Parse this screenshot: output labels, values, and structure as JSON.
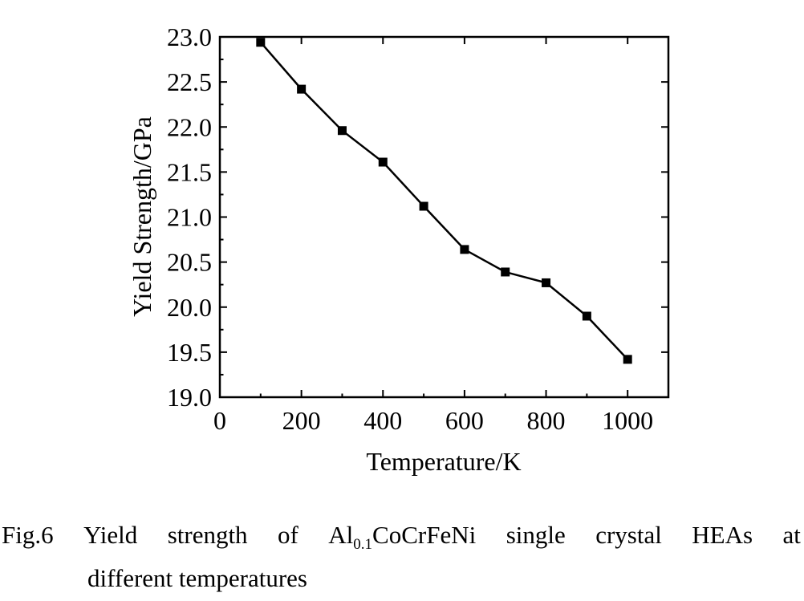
{
  "chart_data": {
    "type": "line",
    "xlabel": "Temperature/K",
    "ylabel": "Yield Strength/GPa",
    "xlim": [
      0,
      1100
    ],
    "ylim": [
      19.0,
      23.0
    ],
    "x_ticks": [
      "0",
      "200",
      "400",
      "600",
      "800",
      "1000"
    ],
    "y_ticks": [
      "19.0",
      "19.5",
      "20.0",
      "20.5",
      "21.0",
      "21.5",
      "22.0",
      "22.5",
      "23.0"
    ],
    "marker": "square",
    "color": "#000000",
    "series": [
      {
        "x": [
          100,
          200,
          300,
          400,
          500,
          600,
          700,
          800,
          900,
          1000
        ],
        "y": [
          22.94,
          22.42,
          21.96,
          21.61,
          21.12,
          20.64,
          20.39,
          20.27,
          19.9,
          19.42
        ]
      }
    ]
  },
  "caption": {
    "number": "Fig.6",
    "words": [
      "Yield",
      "strength",
      "of"
    ],
    "alloy_prefix": "Al",
    "alloy_sub": "0.1",
    "alloy_suffix": "CoCrFeNi",
    "words_after": [
      "single",
      "crystal",
      "HEAs",
      "at"
    ],
    "line2": "different temperatures"
  }
}
